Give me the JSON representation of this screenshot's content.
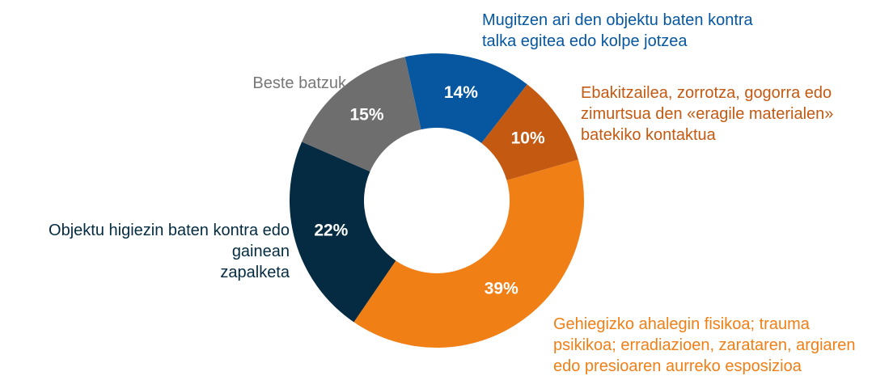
{
  "chart_data": {
    "type": "donut",
    "categories": [
      "Mugitzen ari den objektu baten kontra\ntalka egitea edo kolpe jotzea",
      "Ebakitzailea, zorrotza, gogorra edo\nzimurtsua den «eragile materialen»\nbatekiko kontaktua",
      "Gehiegizko ahalegin fisikoa; trauma\npsikikoa; erradiazioen, zarataren, argiaren\nedo presioaren aurreko esposizioa",
      "Objektu higiezin baten kontra edo\ngainean\nzapalketa",
      "Beste batzuk"
    ],
    "values": [
      14,
      10,
      39,
      22,
      15
    ],
    "value_labels": [
      "14%",
      "10%",
      "39%",
      "22%",
      "15%"
    ],
    "colors": [
      "#0657a0",
      "#c45a12",
      "#f07f16",
      "#042b41",
      "#6e6e6e"
    ]
  }
}
